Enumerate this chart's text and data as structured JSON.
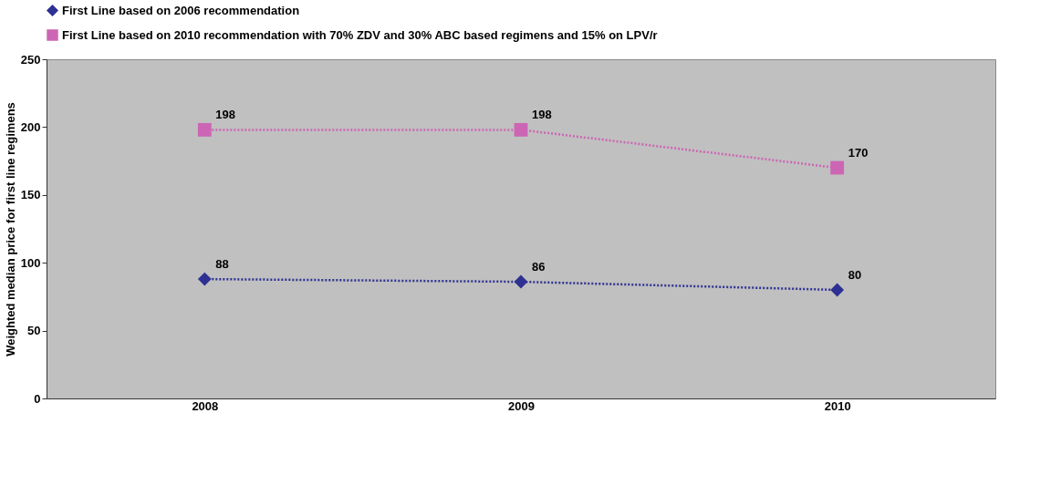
{
  "chart_data": {
    "type": "line",
    "categories": [
      "2008",
      "2009",
      "2010"
    ],
    "ylabel": "Weighted median price for first line regimens",
    "ylim": [
      0,
      250
    ],
    "yticks": [
      0,
      50,
      100,
      150,
      200,
      250
    ],
    "grid": false,
    "legend": "top left",
    "line_style": "dotted",
    "data_labels": true,
    "series": [
      {
        "name": "First Line based on 2006 recommendation",
        "color": "#2e3192",
        "marker": "diamond",
        "values": [
          88,
          86,
          80
        ]
      },
      {
        "name": "First Line based on 2010 recommendation with 70% ZDV and 30% ABC based regimens and 15% on LPV/r",
        "color": "#cc66b4",
        "marker": "square",
        "values": [
          198,
          198,
          170
        ]
      }
    ]
  }
}
